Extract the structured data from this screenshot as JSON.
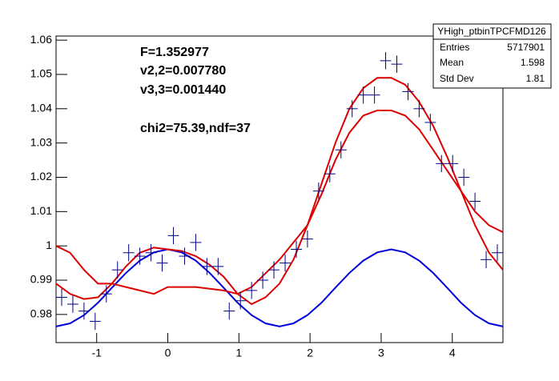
{
  "chart_data": {
    "type": "scatter",
    "annotations": [
      "F=1.352977",
      "v2,2=0.007780",
      "v3,3=0.001440",
      "chi2=75.39,ndf=37"
    ],
    "stats": {
      "title": "YHigh_ptbinTPCFMD126",
      "labels": [
        "Entries",
        "Mean",
        "Std Dev"
      ],
      "values": [
        5717901,
        1.598,
        1.81
      ]
    },
    "xlim": [
      -1.571,
      4.712
    ],
    "ylim": [
      0.9718,
      1.0612
    ],
    "xticks": [
      -1,
      0,
      1,
      2,
      3,
      4
    ],
    "yticks": [
      0.98,
      0.99,
      1,
      1.01,
      1.02,
      1.03,
      1.04,
      1.05,
      1.06
    ],
    "points": {
      "color": "#000080",
      "xerr": 0.0785,
      "yerr": 0.0025,
      "x": [
        -1.492,
        -1.335,
        -1.178,
        -1.021,
        -0.864,
        -0.707,
        -0.55,
        -0.393,
        -0.236,
        -0.079,
        0.079,
        0.236,
        0.393,
        0.55,
        0.707,
        0.864,
        1.021,
        1.178,
        1.335,
        1.492,
        1.65,
        1.807,
        1.964,
        2.121,
        2.278,
        2.435,
        2.592,
        2.749,
        2.906,
        3.063,
        3.22,
        3.377,
        3.534,
        3.691,
        3.848,
        4.005,
        4.162,
        4.319,
        4.476,
        4.633
      ],
      "values": [
        0.985,
        0.983,
        0.981,
        0.978,
        0.986,
        0.993,
        0.998,
        0.997,
        0.998,
        0.995,
        1.003,
        0.997,
        1.001,
        0.994,
        0.994,
        0.981,
        0.984,
        0.987,
        0.99,
        0.993,
        0.995,
        0.999,
        1.002,
        1.016,
        1.021,
        1.028,
        1.04,
        1.044,
        1.044,
        1.054,
        1.053,
        1.045,
        1.04,
        1.036,
        1.024,
        1.024,
        1.02,
        1.013,
        0.996,
        0.998
      ]
    },
    "curve_x": [
      -1.571,
      -1.374,
      -1.178,
      -0.982,
      -0.785,
      -0.589,
      -0.393,
      -0.196,
      0,
      0.196,
      0.393,
      0.589,
      0.785,
      0.982,
      1.178,
      1.374,
      1.571,
      1.767,
      1.963,
      2.16,
      2.356,
      2.553,
      2.749,
      2.945,
      3.142,
      3.338,
      3.534,
      3.731,
      3.927,
      4.123,
      4.32,
      4.516,
      4.712
    ],
    "series": [
      {
        "color": "#0000dd",
        "values": [
          0.9765,
          0.9774,
          0.9798,
          0.9834,
          0.9878,
          0.9921,
          0.9957,
          0.9981,
          0.999,
          0.9981,
          0.9957,
          0.9921,
          0.9878,
          0.9834,
          0.9798,
          0.9774,
          0.9765,
          0.9774,
          0.9798,
          0.9834,
          0.9878,
          0.9921,
          0.9957,
          0.9981,
          0.999,
          0.9981,
          0.9957,
          0.9921,
          0.9878,
          0.9834,
          0.9798,
          0.9774,
          0.9765
        ]
      },
      {
        "color": "#dd0000",
        "values": [
          0.989,
          0.986,
          0.9845,
          0.985,
          0.989,
          0.994,
          0.998,
          0.9995,
          0.999,
          0.9985,
          0.997,
          0.9945,
          0.991,
          0.986,
          0.983,
          0.985,
          0.989,
          0.996,
          1.006,
          1.018,
          1.03,
          1.04,
          1.046,
          1.049,
          1.049,
          1.047,
          1.042,
          1.035,
          1.026,
          1.016,
          1.006,
          0.998,
          0.993
        ]
      },
      {
        "color": "#dd0000",
        "values": [
          1.0,
          0.998,
          0.993,
          0.989,
          0.989,
          0.988,
          0.987,
          0.986,
          0.988,
          0.988,
          0.988,
          0.9875,
          0.987,
          0.986,
          0.988,
          0.992,
          0.996,
          1.001,
          1.006,
          1.015,
          1.025,
          1.033,
          1.038,
          1.0395,
          1.0395,
          1.038,
          1.034,
          1.028,
          1.022,
          1.016,
          1.01,
          1.006,
          1.004
        ]
      }
    ]
  }
}
